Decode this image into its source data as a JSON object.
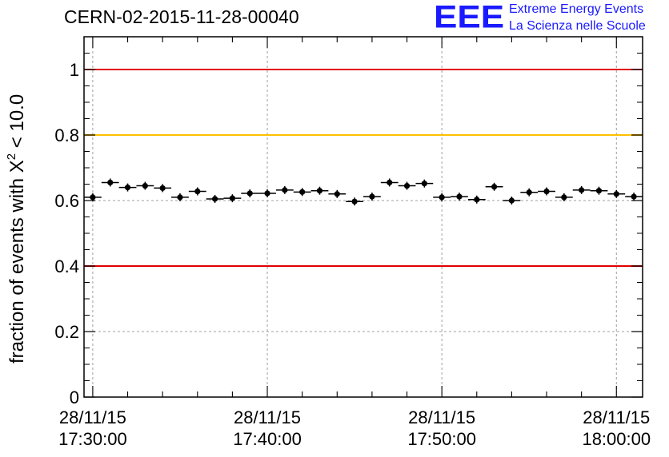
{
  "title": "CERN-02-2015-11-28-00040",
  "logo": {
    "mark": "EEE",
    "line1": "Extreme Energy Events",
    "line2": "La Scienza nelle Scuole",
    "color": "#1a1aff"
  },
  "chart_data": {
    "type": "scatter",
    "title": "CERN-02-2015-11-28-00040",
    "xlabel": "",
    "ylabel": {
      "prefix": "fraction of events with ",
      "symbol": "X",
      "sup": "2",
      "suffix": " < 10.0"
    },
    "xlim": [
      -0.5,
      31.5
    ],
    "ylim": [
      0,
      1.1
    ],
    "y_ticks": [
      0,
      0.2,
      0.4,
      0.6,
      0.8,
      1
    ],
    "y_tick_labels": [
      "0",
      "0.2",
      "0.4",
      "0.6",
      "0.8",
      "1"
    ],
    "x_ticks": [
      {
        "at": 0,
        "date": "28/11/15",
        "time": "17:30:00"
      },
      {
        "at": 10,
        "date": "28/11/15",
        "time": "17:40:00"
      },
      {
        "at": 20,
        "date": "28/11/15",
        "time": "17:50:00"
      },
      {
        "at": 30,
        "date": "28/11/15",
        "time": "18:00:00"
      }
    ],
    "grid": true,
    "reference_lines": [
      {
        "y": 1.0,
        "color": "#e00000"
      },
      {
        "y": 0.8,
        "color": "#ffc000"
      },
      {
        "y": 0.4,
        "color": "#e00000"
      }
    ],
    "x": [
      0,
      1,
      2,
      3,
      4,
      5,
      6,
      7,
      8,
      9,
      10,
      11,
      12,
      13,
      14,
      15,
      16,
      17,
      18,
      19,
      20,
      21,
      22,
      23,
      24,
      25,
      26,
      27,
      28,
      29,
      30,
      31
    ],
    "values": [
      0.61,
      0.655,
      0.64,
      0.645,
      0.638,
      0.61,
      0.628,
      0.605,
      0.607,
      0.622,
      0.622,
      0.632,
      0.626,
      0.63,
      0.62,
      0.597,
      0.612,
      0.655,
      0.645,
      0.652,
      0.61,
      0.612,
      0.603,
      0.642,
      0.6,
      0.625,
      0.628,
      0.61,
      0.632,
      0.63,
      0.62,
      0.612
    ],
    "marker_color": "#000000"
  }
}
